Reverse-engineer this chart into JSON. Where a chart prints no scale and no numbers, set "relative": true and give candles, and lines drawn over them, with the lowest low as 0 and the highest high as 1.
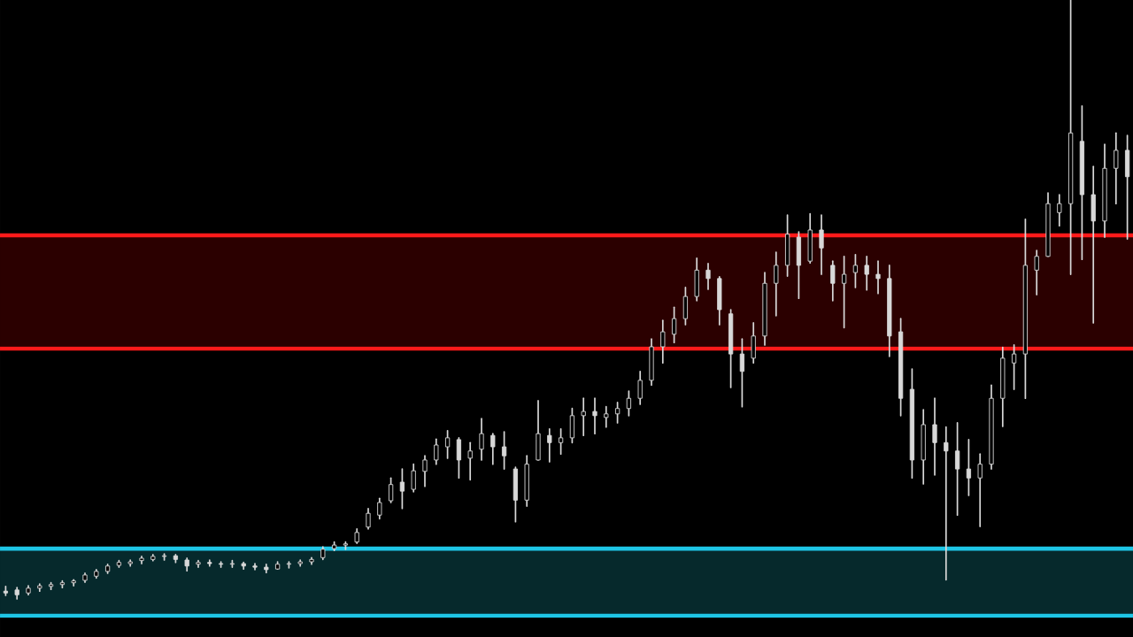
{
  "chart_data": {
    "type": "candlestick",
    "relative": true,
    "color": "#d8d8d8",
    "categories": [
      null,
      null,
      null,
      null,
      null,
      null,
      null,
      null,
      null,
      null,
      null,
      null,
      null,
      null,
      null,
      null,
      null,
      null,
      null,
      null,
      null,
      null,
      null,
      null,
      null,
      null,
      null,
      null,
      null,
      null,
      null,
      null,
      null,
      null,
      null,
      null,
      null,
      null,
      null,
      null,
      null,
      null,
      null,
      null,
      null,
      null,
      null,
      null,
      null,
      null,
      null,
      null,
      null,
      null,
      null,
      null,
      null,
      null,
      null,
      null,
      null,
      null,
      null,
      null,
      null,
      null,
      null,
      null,
      null,
      null,
      null,
      null,
      null,
      null,
      null,
      null,
      null,
      null,
      null,
      null,
      null,
      null,
      null,
      null,
      null,
      null,
      null,
      null,
      null,
      null,
      null,
      null,
      null,
      null,
      null,
      null,
      null,
      null,
      null,
      null
    ],
    "ohlc": [
      [
        0.013,
        0.021,
        0.006,
        0.01
      ],
      [
        0.015,
        0.019,
        0,
        0.007
      ],
      [
        0.01,
        0.022,
        0.007,
        0.018
      ],
      [
        0.018,
        0.025,
        0.013,
        0.022
      ],
      [
        0.021,
        0.027,
        0.016,
        0.024
      ],
      [
        0.024,
        0.03,
        0.019,
        0.027
      ],
      [
        0.027,
        0.032,
        0.022,
        0.03
      ],
      [
        0.031,
        0.043,
        0.028,
        0.04
      ],
      [
        0.038,
        0.049,
        0.035,
        0.046
      ],
      [
        0.046,
        0.058,
        0.043,
        0.055
      ],
      [
        0.056,
        0.064,
        0.053,
        0.061
      ],
      [
        0.059,
        0.065,
        0.055,
        0.062
      ],
      [
        0.064,
        0.071,
        0.059,
        0.068
      ],
      [
        0.066,
        0.074,
        0.064,
        0.071
      ],
      [
        0.071,
        0.075,
        0.065,
        0.072
      ],
      [
        0.072,
        0.074,
        0.061,
        0.066
      ],
      [
        0.065,
        0.068,
        0.047,
        0.055
      ],
      [
        0.058,
        0.064,
        0.053,
        0.061
      ],
      [
        0.061,
        0.065,
        0.055,
        0.059
      ],
      [
        0.059,
        0.062,
        0.053,
        0.058
      ],
      [
        0.058,
        0.064,
        0.053,
        0.059
      ],
      [
        0.059,
        0.061,
        0.05,
        0.055
      ],
      [
        0.055,
        0.059,
        0.049,
        0.053
      ],
      [
        0.053,
        0.058,
        0.044,
        0.049
      ],
      [
        0.05,
        0.062,
        0.05,
        0.058
      ],
      [
        0.058,
        0.062,
        0.052,
        0.059
      ],
      [
        0.059,
        0.065,
        0.055,
        0.062
      ],
      [
        0.062,
        0.069,
        0.058,
        0.066
      ],
      [
        0.069,
        0.087,
        0.066,
        0.083
      ],
      [
        0.084,
        0.095,
        0.081,
        0.09
      ],
      [
        0.09,
        0.095,
        0.083,
        0.092
      ],
      [
        0.095,
        0.117,
        0.093,
        0.111
      ],
      [
        0.12,
        0.151,
        0.117,
        0.143
      ],
      [
        0.14,
        0.168,
        0.134,
        0.161
      ],
      [
        0.164,
        0.202,
        0.161,
        0.191
      ],
      [
        0.195,
        0.217,
        0.151,
        0.18
      ],
      [
        0.183,
        0.225,
        0.179,
        0.214
      ],
      [
        0.213,
        0.239,
        0.188,
        0.232
      ],
      [
        0.232,
        0.267,
        0.225,
        0.257
      ],
      [
        0.254,
        0.281,
        0.235,
        0.269
      ],
      [
        0.266,
        0.269,
        0.202,
        0.232
      ],
      [
        0.235,
        0.261,
        0.199,
        0.247
      ],
      [
        0.25,
        0.301,
        0.232,
        0.276
      ],
      [
        0.273,
        0.276,
        0.225,
        0.254
      ],
      [
        0.254,
        0.279,
        0.217,
        0.239
      ],
      [
        0.217,
        0.22,
        0.129,
        0.165
      ],
      [
        0.165,
        0.239,
        0.155,
        0.225
      ],
      [
        0.232,
        0.331,
        0.232,
        0.276
      ],
      [
        0.273,
        0.284,
        0.229,
        0.261
      ],
      [
        0.261,
        0.284,
        0.242,
        0.269
      ],
      [
        0.269,
        0.318,
        0.261,
        0.306
      ],
      [
        0.306,
        0.335,
        0.273,
        0.313
      ],
      [
        0.313,
        0.335,
        0.276,
        0.306
      ],
      [
        0.303,
        0.321,
        0.287,
        0.309
      ],
      [
        0.309,
        0.328,
        0.294,
        0.318
      ],
      [
        0.318,
        0.347,
        0.306,
        0.335
      ],
      [
        0.335,
        0.38,
        0.325,
        0.365
      ],
      [
        0.365,
        0.434,
        0.357,
        0.421
      ],
      [
        0.421,
        0.465,
        0.394,
        0.446
      ],
      [
        0.442,
        0.487,
        0.428,
        0.468
      ],
      [
        0.468,
        0.52,
        0.458,
        0.505
      ],
      [
        0.505,
        0.569,
        0.498,
        0.549
      ],
      [
        0.549,
        0.56,
        0.517,
        0.535
      ],
      [
        0.535,
        0.538,
        0.458,
        0.483
      ],
      [
        0.476,
        0.483,
        0.353,
        0.409
      ],
      [
        0.409,
        0.434,
        0.321,
        0.38
      ],
      [
        0.402,
        0.461,
        0.394,
        0.439
      ],
      [
        0.439,
        0.545,
        0.424,
        0.527
      ],
      [
        0.527,
        0.579,
        0.473,
        0.557
      ],
      [
        0.557,
        0.641,
        0.539,
        0.609
      ],
      [
        0.604,
        0.613,
        0.502,
        0.557
      ],
      [
        0.564,
        0.643,
        0.561,
        0.616
      ],
      [
        0.616,
        0.641,
        0.542,
        0.586
      ],
      [
        0.557,
        0.564,
        0.498,
        0.527
      ],
      [
        0.527,
        0.572,
        0.453,
        0.542
      ],
      [
        0.545,
        0.575,
        0.52,
        0.557
      ],
      [
        0.557,
        0.572,
        0.516,
        0.542
      ],
      [
        0.542,
        0.564,
        0.51,
        0.535
      ],
      [
        0.535,
        0.557,
        0.405,
        0.439
      ],
      [
        0.446,
        0.468,
        0.306,
        0.335
      ],
      [
        0.35,
        0.384,
        0.202,
        0.232
      ],
      [
        0.232,
        0.316,
        0.192,
        0.291
      ],
      [
        0.291,
        0.335,
        0.207,
        0.261
      ],
      [
        0.261,
        0.287,
        0.032,
        0.247
      ],
      [
        0.247,
        0.294,
        0.14,
        0.217
      ],
      [
        0.217,
        0.266,
        0.173,
        0.202
      ],
      [
        0.202,
        0.242,
        0.121,
        0.225
      ],
      [
        0.225,
        0.357,
        0.217,
        0.335
      ],
      [
        0.335,
        0.42,
        0.288,
        0.402
      ],
      [
        0.394,
        0.424,
        0.35,
        0.409
      ],
      [
        0.409,
        0.634,
        0.335,
        0.557
      ],
      [
        0.549,
        0.582,
        0.508,
        0.572
      ],
      [
        0.572,
        0.678,
        0.572,
        0.66
      ],
      [
        0.645,
        0.675,
        0.623,
        0.66
      ],
      [
        0.66,
        1,
        0.542,
        0.778
      ],
      [
        0.764,
        0.823,
        0.567,
        0.675
      ],
      [
        0.675,
        0.722,
        0.461,
        0.631
      ],
      [
        0.631,
        0.759,
        0.604,
        0.719
      ],
      [
        0.719,
        0.778,
        0.66,
        0.749
      ],
      [
        0.749,
        0.774,
        0.601,
        0.705
      ]
    ],
    "bands": [
      {
        "axis": "y",
        "from": 0.418,
        "to": 0.607,
        "color": "#2b0000"
      },
      {
        "axis": "y",
        "from": -0.028,
        "to": 0.084,
        "color": "#06292c"
      }
    ],
    "ref_lines": [
      {
        "axis": "y",
        "value": 0.607,
        "color": "#ff1a1a"
      },
      {
        "axis": "y",
        "value": 0.418,
        "color": "#ff1a1a"
      },
      {
        "axis": "y",
        "value": 0.084,
        "color": "#1ec6e6"
      },
      {
        "axis": "y",
        "value": -0.028,
        "color": "#1ec6e6"
      }
    ]
  }
}
